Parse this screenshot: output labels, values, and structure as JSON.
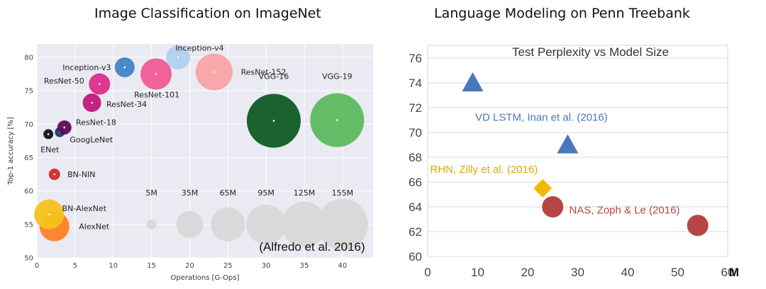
{
  "left_title": "Image Classification on ImageNet",
  "right_title": "Language Modeling on Penn Treebank",
  "chart_data": [
    {
      "type": "scatter",
      "title": "Image Classification on ImageNet",
      "xlabel": "Operations [G-Ops]",
      "ylabel": "Top-1 accuracy [%]",
      "xlim": [
        0,
        44
      ],
      "ylim": [
        50,
        82
      ],
      "xticks": [
        "0",
        "5",
        "10",
        "15",
        "20",
        "25",
        "30",
        "35",
        "40"
      ],
      "yticks": [
        "50",
        "55",
        "60",
        "65",
        "70",
        "75",
        "80"
      ],
      "grid": true,
      "annotation": "(Alfredo et al. 2016)",
      "size_legend": {
        "labels": [
          "5M",
          "35M",
          "65M",
          "95M",
          "125M",
          "155M"
        ],
        "x": [
          15,
          20,
          25,
          30,
          35,
          40
        ],
        "y": 55,
        "label_y": 59.3,
        "color": "#d9d9d9",
        "r": [
          7,
          19,
          24,
          28,
          32,
          36
        ]
      },
      "points": [
        {
          "name": "AlexNet",
          "x": 2.3,
          "y": 54.7,
          "r": 21,
          "color": "#ff7f27",
          "label": "AlexNet",
          "label_x": 5.5,
          "label_y": 54.7,
          "label_anchor": "start"
        },
        {
          "name": "BN-AlexNet",
          "x": 1.6,
          "y": 56.5,
          "r": 21,
          "color": "#f7c21e",
          "label": "BN-AlexNet",
          "label_x": 3.3,
          "label_y": 57.4,
          "label_anchor": "start"
        },
        {
          "name": "BN-NIN",
          "x": 2.3,
          "y": 62.5,
          "r": 8,
          "color": "#d62728",
          "label": "BN-NIN",
          "label_x": 4,
          "label_y": 62.5,
          "label_anchor": "start"
        },
        {
          "name": "ENet",
          "x": 1.5,
          "y": 68.5,
          "r": 7,
          "color": "#111111",
          "label": "ENet",
          "label_x": 1.7,
          "label_y": 66.2,
          "label_anchor": "middle"
        },
        {
          "name": "GoogLeNet",
          "x": 3.0,
          "y": 68.8,
          "r": 7,
          "color": "#1f3b70",
          "label": "GoogLeNet",
          "label_x": 4.3,
          "label_y": 67.7,
          "label_anchor": "start"
        },
        {
          "name": "ResNet-18",
          "x": 3.6,
          "y": 69.5,
          "r": 10,
          "color": "#5b0f5b",
          "label": "ResNet-18",
          "label_x": 5.1,
          "label_y": 70.3,
          "label_anchor": "start"
        },
        {
          "name": "ResNet-34",
          "x": 7.2,
          "y": 73.2,
          "r": 13,
          "color": "#c2187a",
          "label": "ResNet-34",
          "label_x": 9.1,
          "label_y": 73,
          "label_anchor": "start"
        },
        {
          "name": "ResNet-50",
          "x": 8.2,
          "y": 76.0,
          "r": 15,
          "color": "#de2d8c",
          "label": "ResNet-50",
          "label_x": 6.2,
          "label_y": 76.5,
          "label_anchor": "end"
        },
        {
          "name": "Inception-v3",
          "x": 11.5,
          "y": 78.5,
          "r": 14,
          "color": "#3f86c4",
          "label": "Inception-v3",
          "label_x": 9.7,
          "label_y": 78.5,
          "label_anchor": "end"
        },
        {
          "name": "ResNet-101",
          "x": 15.6,
          "y": 77.5,
          "r": 22,
          "color": "#ef5b95",
          "label": "ResNet-101",
          "label_x": 15.7,
          "label_y": 74.4,
          "label_anchor": "middle"
        },
        {
          "name": "ResNet-152",
          "x": 23.2,
          "y": 77.8,
          "r": 26,
          "color": "#f9a3a6",
          "label": "ResNet-152",
          "label_x": 26.7,
          "label_y": 77.8,
          "label_anchor": "start"
        },
        {
          "name": "Inception-v4",
          "x": 18.5,
          "y": 80.0,
          "r": 17,
          "color": "#b3d0ed",
          "label": "Inception-v4",
          "label_x": 21.3,
          "label_y": 81.4,
          "label_anchor": "middle"
        },
        {
          "name": "VGG-16",
          "x": 31.0,
          "y": 70.5,
          "r": 38,
          "color": "#0f5c25",
          "label": "VGG-16",
          "label_x": 31,
          "label_y": 77.2,
          "label_anchor": "middle"
        },
        {
          "name": "VGG-19",
          "x": 39.3,
          "y": 70.6,
          "r": 38,
          "color": "#5eb95e",
          "label": "VGG-19",
          "label_x": 39.3,
          "label_y": 77.2,
          "label_anchor": "middle"
        }
      ]
    },
    {
      "type": "scatter",
      "title": "Test Perplexity vs Model Size",
      "xlabel": "M",
      "ylabel": "",
      "xlim": [
        0,
        60
      ],
      "ylim": [
        60,
        76
      ],
      "xticks": [
        "0",
        "10",
        "20",
        "30",
        "40",
        "50",
        "60"
      ],
      "yticks": [
        "60",
        "62",
        "64",
        "66",
        "68",
        "70",
        "72",
        "74",
        "76"
      ],
      "grid": true,
      "points": [
        {
          "name": "VD LSTM",
          "x": 9,
          "y": 74,
          "shape": "triangle",
          "color": "#4a77ba",
          "label": "VD LSTM, Inan et al. (2016)",
          "label_color": "#4a77ba",
          "label_x": 9.5,
          "label_y": 71.3,
          "label_anchor": "start"
        },
        {
          "name": "VD LSTM large",
          "x": 28,
          "y": 69,
          "shape": "triangle",
          "color": "#4a77ba",
          "label": "",
          "label_color": "#4a77ba",
          "label_x": 0,
          "label_y": 0,
          "label_anchor": "start"
        },
        {
          "name": "RHN",
          "x": 23,
          "y": 65.5,
          "shape": "diamond",
          "color": "#f5b800",
          "label": "RHN, Zilly et al. (2016)",
          "label_color": "#e0a800",
          "label_x": 0.5,
          "label_y": 67.1,
          "label_anchor": "start"
        },
        {
          "name": "NAS",
          "x": 25,
          "y": 64,
          "shape": "circle",
          "color": "#b64545",
          "label": "NAS, Zoph & Le (2016)",
          "label_color": "#b64545",
          "label_x": 28.3,
          "label_y": 63.8,
          "label_anchor": "start"
        },
        {
          "name": "NAS large",
          "x": 54,
          "y": 62.5,
          "shape": "circle",
          "color": "#b64545",
          "label": "",
          "label_color": "#b64545",
          "label_x": 0,
          "label_y": 0,
          "label_anchor": "start"
        }
      ]
    }
  ]
}
